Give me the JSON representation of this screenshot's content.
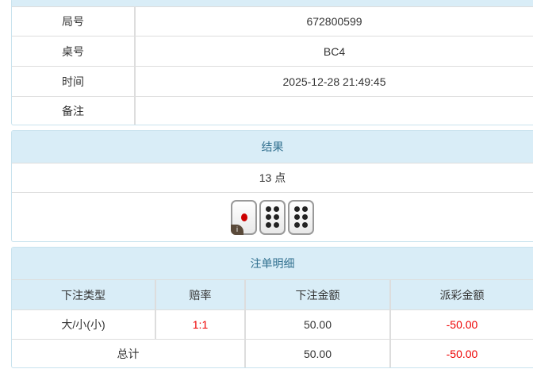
{
  "info": {
    "rows": [
      {
        "label": "局号",
        "value": "672800599"
      },
      {
        "label": "桌号",
        "value": "BC4"
      },
      {
        "label": "时间",
        "value": "2025-12-28 21:49:45"
      },
      {
        "label": "备注",
        "value": ""
      }
    ]
  },
  "result": {
    "title": "结果",
    "points": "13 点",
    "dice": [
      1,
      6,
      6
    ],
    "info_badge": "i"
  },
  "details": {
    "title": "注单明细",
    "columns": [
      "下注类型",
      "赔率",
      "下注金额",
      "派彩金额"
    ],
    "rows": [
      {
        "type": "大/小(小)",
        "odds": "1:1",
        "amount": "50.00",
        "payout": "-50.00"
      }
    ],
    "total": {
      "label": "总计",
      "amount": "50.00",
      "payout": "-50.00"
    }
  },
  "colors": {
    "header_bg": "#d9edf7",
    "header_text": "#31708f",
    "negative": "#e00000"
  }
}
